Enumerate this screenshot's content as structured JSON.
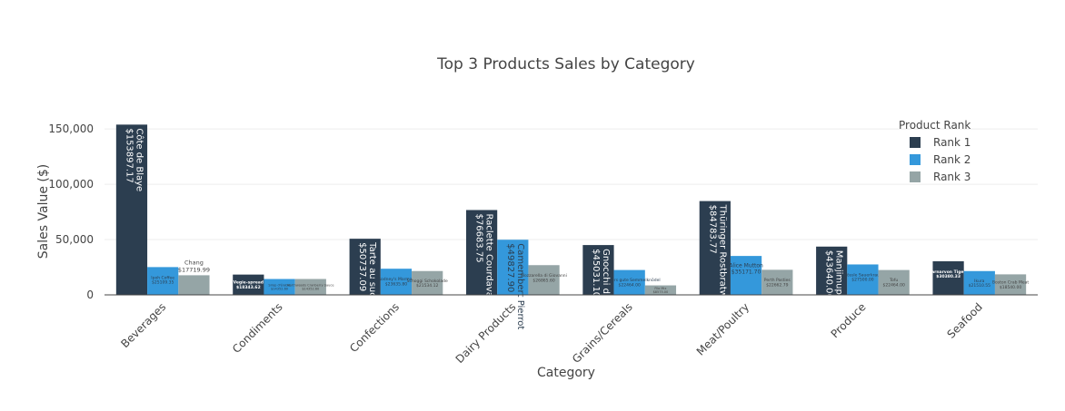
{
  "chart_data": {
    "type": "bar",
    "title": "Top 3 Products Sales by Category",
    "xlabel": "Category",
    "ylabel": "Sales Value ($)",
    "ylim": [
      0,
      155000
    ],
    "yticks": [
      0,
      50000,
      100000,
      150000
    ],
    "ytick_labels": [
      "0",
      "50,000",
      "100,000",
      "150,000"
    ],
    "grid": true,
    "legend": {
      "title": "Product Rank",
      "position": "top-right"
    },
    "categories": [
      "Beverages",
      "Condiments",
      "Confections",
      "Dairy Products",
      "Grains/Cereals",
      "Meat/Poultry",
      "Produce",
      "Seafood"
    ],
    "series": [
      {
        "name": "Rank 1",
        "color": "#2c3e50",
        "values": [
          153897.17,
          18343.62,
          50737.09,
          76683.75,
          45031.1,
          84783.77,
          43640,
          30380.33
        ],
        "labels": [
          "Côte de Blaye<br>$153897.17",
          "Vegie-spread<br>$18343.62",
          "Tarte au sucre<br>$50737.09",
          "Raclette Courdavault<br>$76683.75",
          "Gnocchi di nonna Alice<br>$45031.10",
          "Thüringer Rostbratwurst<br>$84783.77",
          "Manjimup Dried Apples<br>$43640.00",
          "Carnarvon Tigers<br>$30380.33"
        ]
      },
      {
        "name": "Rank 2",
        "color": "#3498db",
        "values": [
          25109.35,
          14352.6,
          23635.8,
          49827.9,
          22464.0,
          35171.7,
          27500,
          21510.55
        ],
        "labels": [
          "Ipoh Coffee<br>$25109.35",
          "Sirop d'érable<br>$14352.60",
          "Sir Rodney's Marmalade<br>$23635.80",
          "Camembert Pierrot<br>$49827.90",
          "Wimmers gute Semmelknödel<br>$22464.00",
          "Alice Mutton<br>$35171.70",
          "Rössle Sauerkraut<br>$27500.00",
          "Ikura<br>$21510.55"
        ]
      },
      {
        "name": "Rank 3",
        "color": "#95a5a6",
        "values": [
          17719.99,
          14352.6,
          21534.12,
          26865.6,
          8575.0,
          22662.79,
          22464.0,
          18540.0
        ],
        "labels": [
          "Chang<br>$17719.99",
          "Northwoods Cranberry Sauce<br>$14352.60",
          "Schoggi Schokolade<br>$21534.12",
          "Mozzarella di Giovanni<br>$26865.60",
          "Filo Mix<br>$8575.00",
          "Perth Pasties<br>$22662.79",
          "Tofu<br>$22464.00",
          "Boston Crab Meat<br>$18540.00"
        ]
      }
    ]
  }
}
